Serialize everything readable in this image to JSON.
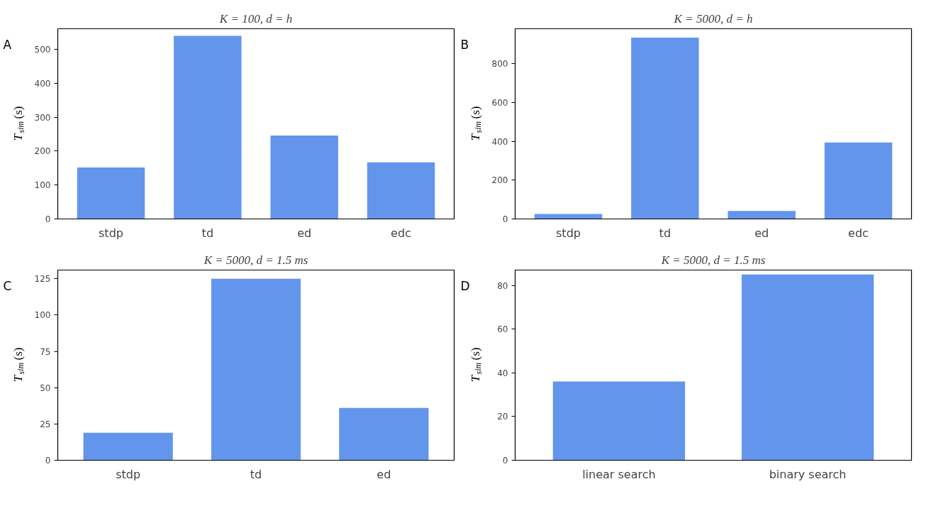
{
  "chart_data": [
    {
      "type": "bar",
      "title": "K = 100, d = h",
      "ylabel": "T$_{sim}$ (s)",
      "annotations": [
        "A"
      ],
      "categories": [
        "stdp",
        "td",
        "ed",
        "edc"
      ],
      "values": [
        152,
        540,
        246,
        167
      ],
      "color": "#6495ed",
      "ylim": [
        0,
        561
      ],
      "yticks": [
        0,
        100,
        200,
        300,
        400,
        500
      ],
      "grid": false
    },
    {
      "type": "bar",
      "title": "K = 5000, d = h",
      "ylabel": "T$_{sim}$ (s)",
      "annotations": [
        "B"
      ],
      "categories": [
        "stdp",
        "td",
        "ed",
        "edc"
      ],
      "values": [
        26,
        935,
        41,
        394
      ],
      "color": "#6495ed",
      "ylim": [
        0,
        981
      ],
      "yticks": [
        0,
        200,
        400,
        600,
        800
      ],
      "grid": false
    },
    {
      "type": "bar",
      "title": "K = 5000, d = 1.5 ms",
      "ylabel": "T$_{sim}$ (s)",
      "annotations": [
        "C"
      ],
      "categories": [
        "stdp",
        "td",
        "ed"
      ],
      "values": [
        19,
        125,
        36
      ],
      "color": "#6495ed",
      "ylim": [
        0,
        131
      ],
      "yticks": [
        0,
        25,
        50,
        75,
        100,
        125
      ],
      "grid": false
    },
    {
      "type": "bar",
      "title": "K = 5000, d = 1.5 ms",
      "ylabel": "T$_{sim}$ (s)",
      "annotations": [
        "D"
      ],
      "categories": [
        "linear search",
        "binary search"
      ],
      "values": [
        36,
        85
      ],
      "color": "#6495ed",
      "ylim": [
        0,
        87
      ],
      "yticks": [
        0,
        20,
        40,
        60,
        80
      ],
      "grid": false
    }
  ]
}
